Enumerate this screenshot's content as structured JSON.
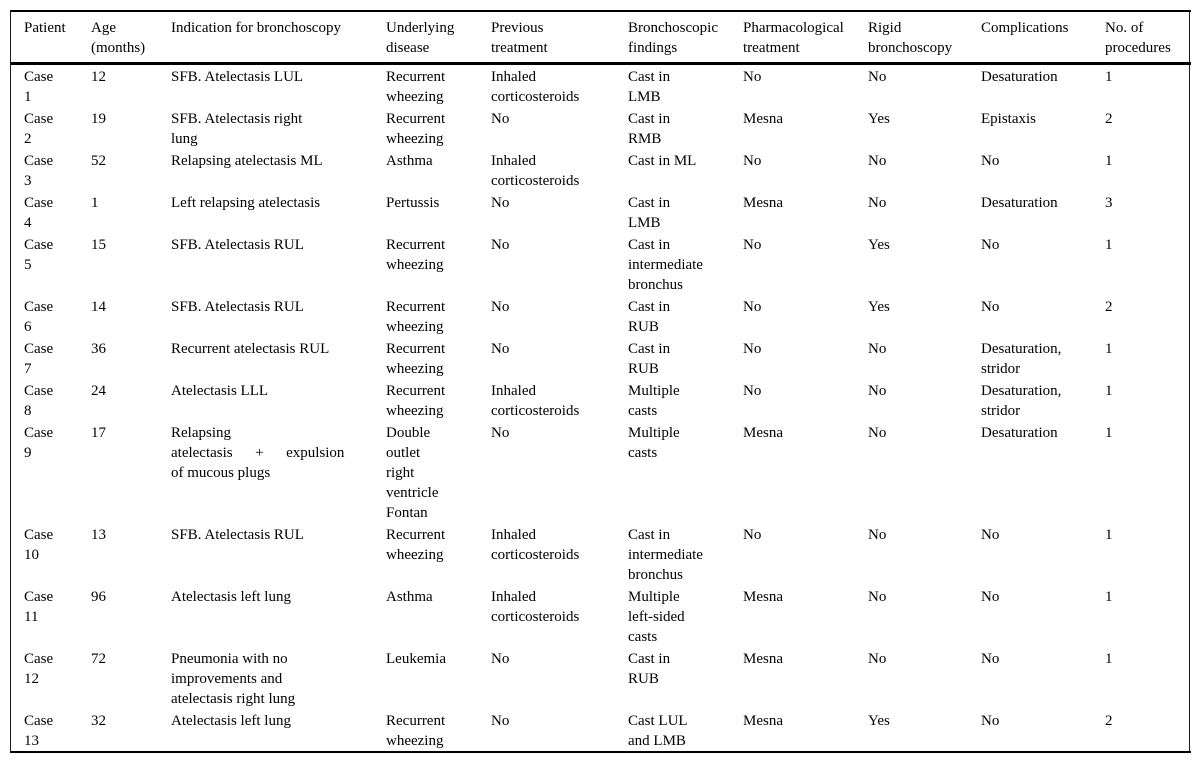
{
  "page": {
    "background_color": "#ffffff",
    "text_color": "#000000",
    "rule_color": "#000000"
  },
  "table": {
    "columns": [
      {
        "key": "patient",
        "label": "Patient"
      },
      {
        "key": "age-months",
        "label": "Age\n(months)"
      },
      {
        "key": "indication",
        "label": "Indication for bronchoscopy"
      },
      {
        "key": "underlying-disease",
        "label": "Underlying\ndisease"
      },
      {
        "key": "previous-treatment",
        "label": "Previous\ntreatment"
      },
      {
        "key": "bronchoscopic-findings",
        "label": "Bronchoscopic\nfindings"
      },
      {
        "key": "pharmacological-treatment",
        "label": "Pharmacological\ntreatment"
      },
      {
        "key": "rigid-bronchoscopy",
        "label": "Rigid\nbronchoscopy"
      },
      {
        "key": "complications",
        "label": "Complications"
      },
      {
        "key": "num-procedures",
        "label": "No. of\nprocedures"
      }
    ],
    "rows": [
      [
        "Case\n1",
        "12",
        "SFB. Atelectasis LUL",
        "Recurrent\nwheezing",
        "Inhaled\ncorticosteroids",
        "Cast in\nLMB",
        "No",
        "No",
        "Desaturation",
        "1"
      ],
      [
        "Case\n2",
        "19",
        "SFB. Atelectasis right\nlung",
        "Recurrent\nwheezing",
        "No",
        "Cast in\nRMB",
        "Mesna",
        "Yes",
        "Epistaxis",
        "2"
      ],
      [
        "Case\n3",
        "52",
        "Relapsing atelectasis ML",
        "Asthma",
        "Inhaled\ncorticosteroids",
        "Cast in ML",
        "No",
        "No",
        "No",
        "1"
      ],
      [
        "Case\n4",
        "1",
        "Left relapsing atelectasis",
        "Pertussis",
        "No",
        "Cast in\nLMB",
        "Mesna",
        "No",
        "Desaturation",
        "3"
      ],
      [
        "Case\n5",
        "15",
        "SFB. Atelectasis RUL",
        "Recurrent\nwheezing",
        "No",
        "Cast in\nintermediate\nbronchus",
        "No",
        "Yes",
        "No",
        "1"
      ],
      [
        "Case\n6",
        "14",
        "SFB. Atelectasis RUL",
        "Recurrent\nwheezing",
        "No",
        "Cast in\nRUB",
        "No",
        "Yes",
        "No",
        "2"
      ],
      [
        "Case\n7",
        "36",
        "Recurrent atelectasis RUL",
        "Recurrent\nwheezing",
        "No",
        "Cast in\nRUB",
        "No",
        "No",
        "Desaturation,\nstridor",
        "1"
      ],
      [
        "Case\n8",
        "24",
        "Atelectasis LLL",
        "Recurrent\nwheezing",
        "Inhaled\ncorticosteroids",
        "Multiple\ncasts",
        "No",
        "No",
        "Desaturation,\nstridor",
        "1"
      ],
      [
        "Case\n9",
        "17",
        "Relapsing\natelectasis      +      expulsion\nof mucous plugs",
        "Double\noutlet\nright\nventricle\nFontan",
        "No",
        "Multiple\ncasts",
        "Mesna",
        "No",
        "Desaturation",
        "1"
      ],
      [
        "Case\n10",
        "13",
        "SFB. Atelectasis RUL",
        "Recurrent\nwheezing",
        "Inhaled\ncorticosteroids",
        "Cast in\nintermediate\nbronchus",
        "No",
        "No",
        "No",
        "1"
      ],
      [
        "Case\n11",
        "96",
        "Atelectasis left lung",
        "Asthma",
        "Inhaled\ncorticosteroids",
        "Multiple\nleft-sided\ncasts",
        "Mesna",
        "No",
        "No",
        "1"
      ],
      [
        "Case\n12",
        "72",
        "Pneumonia with no\nimprovements and\natelectasis right lung",
        "Leukemia",
        "No",
        "Cast in\nRUB",
        "Mesna",
        "No",
        "No",
        "1"
      ],
      [
        "Case\n13",
        "32",
        "Atelectasis left lung",
        "Recurrent\nwheezing",
        "No",
        "Cast LUL\nand LMB",
        "Mesna",
        "Yes",
        "No",
        "2"
      ]
    ]
  }
}
